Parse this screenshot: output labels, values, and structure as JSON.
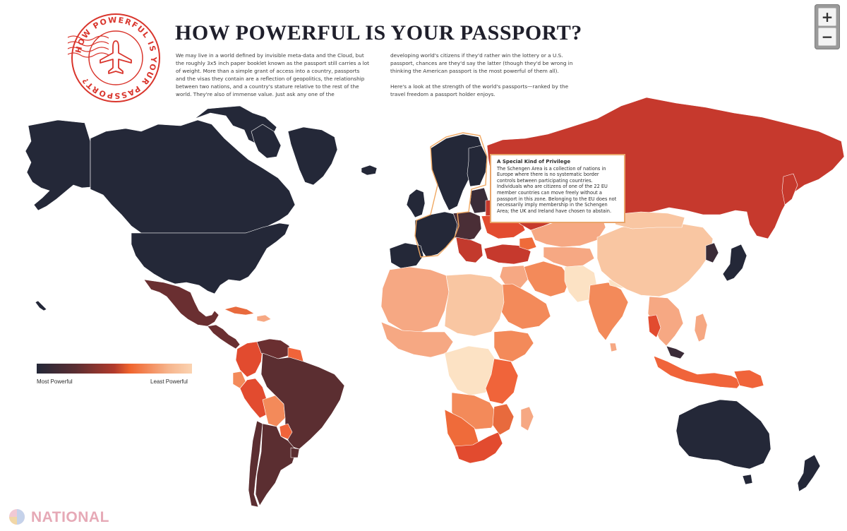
{
  "header": {
    "title": "HOW POWERFUL IS YOUR PASSPORT?",
    "stamp_text": "HOW POWERFUL IS YOUR PASSPORT?",
    "stamp_icon": "airplane-icon"
  },
  "intro": {
    "col1": "We may live in a world defined by invisible meta-data and the Cloud, but the roughly 3x5 inch paper booklet known as the passport still carries a lot of weight. More than a simple grant of access into a country, passports and the visas they contain are a reflection of geopolitics, the relationship between two nations, and a country's stature relative to the rest of the world. They're also of immense value. Just ask any one of the",
    "col2_p1": "developing world's citizens if they'd rather win the lottery or a U.S. passport, chances are they'd say the latter (though they'd be wrong in thinking the American passport is the most powerful of them all).",
    "col2_p2": "Here's a look at the strength of the world's passports—ranked by the travel freedom a passport holder enjoys."
  },
  "callout": {
    "title": "A Special Kind of Privilege",
    "body": "The Schengen Area is a collection of nations in Europe where there is no systematic border controls between participating countries. Individuals who are citizens of one of the 22 EU member countries can move freely without a passport in this zone. Belonging to the EU does not necessarily imply membership in the Schengen Area; the UK and Ireland have chosen to abstain."
  },
  "legend": {
    "left_label": "Most Powerful",
    "right_label": "Least Powerful",
    "gradient_colors": [
      "#242838",
      "#5a2e32",
      "#b23a2c",
      "#f0642e",
      "#f6b58d",
      "#fbd3b1"
    ]
  },
  "zoom": {
    "zoom_in_label": "+",
    "zoom_out_label": "−"
  },
  "watermark": {
    "brand": "NATIONAL"
  },
  "colors": {
    "most_powerful": "#242838",
    "strong": "#5b2e31",
    "mid_dark": "#7a3232",
    "red": "#c6392d",
    "orange": "#ef6b3a",
    "light_orange": "#f6a883",
    "pale": "#f9c6a2",
    "palest": "#fce2c4",
    "stamp_red": "#d9352c",
    "callout_border": "#e9a66b"
  }
}
